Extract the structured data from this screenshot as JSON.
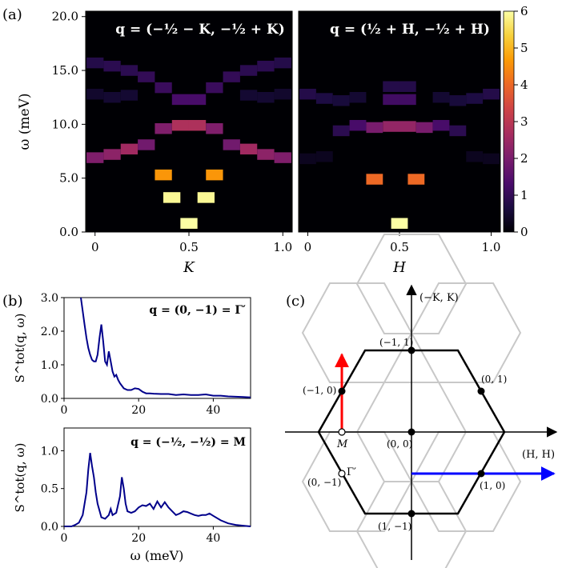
{
  "panel_labels": {
    "a": "(a)",
    "b": "(b)",
    "c": "(c)"
  },
  "chart_data": [
    {
      "id": "a-left",
      "type": "heatmap",
      "title": "q = (−½ − K, −½ + K)",
      "xlabel": "K",
      "ylabel": "ω (meV)",
      "xlim": [
        -0.05,
        1.05
      ],
      "ylim": [
        0,
        20.5
      ],
      "xticks": [
        0,
        0.5,
        1.0
      ],
      "xtick_labels": [
        "0",
        "0.5",
        "1.0"
      ],
      "yticks": [
        0,
        5,
        10,
        15,
        20
      ],
      "ytick_labels": [
        "0.0",
        "5.0",
        "10.0",
        "15.0",
        "20.0"
      ],
      "x_bin_width": 0.0909,
      "y_bin_height": 1.0,
      "cells": [
        {
          "x": 0.0,
          "y": 15.7,
          "v": 0.8
        },
        {
          "x": 0.0,
          "y": 12.8,
          "v": 0.45
        },
        {
          "x": 0.0,
          "y": 6.9,
          "v": 2.1
        },
        {
          "x": 0.091,
          "y": 15.4,
          "v": 0.9
        },
        {
          "x": 0.091,
          "y": 12.5,
          "v": 0.5
        },
        {
          "x": 0.091,
          "y": 7.2,
          "v": 2.3
        },
        {
          "x": 0.182,
          "y": 15.0,
          "v": 0.9
        },
        {
          "x": 0.182,
          "y": 12.7,
          "v": 0.5
        },
        {
          "x": 0.182,
          "y": 7.7,
          "v": 2.6
        },
        {
          "x": 0.273,
          "y": 14.4,
          "v": 1.0
        },
        {
          "x": 0.273,
          "y": 8.1,
          "v": 1.9
        },
        {
          "x": 0.364,
          "y": 13.4,
          "v": 1.1
        },
        {
          "x": 0.364,
          "y": 9.6,
          "v": 2.1
        },
        {
          "x": 0.364,
          "y": 5.3,
          "v": 4.6
        },
        {
          "x": 0.409,
          "y": 3.2,
          "v": 5.9
        },
        {
          "x": 0.455,
          "y": 12.3,
          "v": 1.3
        },
        {
          "x": 0.455,
          "y": 9.9,
          "v": 2.8
        },
        {
          "x": 0.5,
          "y": 0.8,
          "v": 6.0
        },
        {
          "x": 0.545,
          "y": 12.3,
          "v": 1.3
        },
        {
          "x": 0.545,
          "y": 9.9,
          "v": 2.8
        },
        {
          "x": 0.591,
          "y": 3.2,
          "v": 5.9
        },
        {
          "x": 0.636,
          "y": 13.4,
          "v": 1.1
        },
        {
          "x": 0.636,
          "y": 9.6,
          "v": 2.1
        },
        {
          "x": 0.636,
          "y": 5.3,
          "v": 4.6
        },
        {
          "x": 0.727,
          "y": 14.4,
          "v": 1.0
        },
        {
          "x": 0.727,
          "y": 8.1,
          "v": 1.9
        },
        {
          "x": 0.818,
          "y": 15.0,
          "v": 0.9
        },
        {
          "x": 0.818,
          "y": 12.7,
          "v": 0.5
        },
        {
          "x": 0.818,
          "y": 7.7,
          "v": 2.6
        },
        {
          "x": 0.909,
          "y": 15.4,
          "v": 0.9
        },
        {
          "x": 0.909,
          "y": 12.5,
          "v": 0.5
        },
        {
          "x": 0.909,
          "y": 7.2,
          "v": 2.3
        },
        {
          "x": 1.0,
          "y": 15.7,
          "v": 0.8
        },
        {
          "x": 1.0,
          "y": 12.8,
          "v": 0.45
        },
        {
          "x": 1.0,
          "y": 6.9,
          "v": 2.1
        }
      ]
    },
    {
      "id": "a-right",
      "type": "heatmap",
      "title": "q = (½ + H, −½ + H)",
      "xlabel": "H",
      "ylabel": "",
      "xlim": [
        -0.05,
        1.05
      ],
      "ylim": [
        0,
        20.5
      ],
      "xticks": [
        0,
        0.5,
        1.0
      ],
      "xtick_labels": [
        "0",
        "0.5",
        "1.0"
      ],
      "x_bin_width": 0.0909,
      "y_bin_height": 1.0,
      "cells": [
        {
          "x": 0.0,
          "y": 12.8,
          "v": 0.8
        },
        {
          "x": 0.0,
          "y": 6.8,
          "v": 0.3
        },
        {
          "x": 0.091,
          "y": 12.4,
          "v": 0.7
        },
        {
          "x": 0.091,
          "y": 7.0,
          "v": 0.3
        },
        {
          "x": 0.182,
          "y": 12.2,
          "v": 0.6
        },
        {
          "x": 0.182,
          "y": 9.4,
          "v": 0.9
        },
        {
          "x": 0.273,
          "y": 12.5,
          "v": 0.5
        },
        {
          "x": 0.273,
          "y": 9.9,
          "v": 1.3
        },
        {
          "x": 0.364,
          "y": 9.7,
          "v": 2.0
        },
        {
          "x": 0.364,
          "y": 4.9,
          "v": 4.0
        },
        {
          "x": 0.455,
          "y": 12.3,
          "v": 1.2
        },
        {
          "x": 0.455,
          "y": 9.8,
          "v": 2.4
        },
        {
          "x": 0.455,
          "y": 13.5,
          "v": 0.8
        },
        {
          "x": 0.5,
          "y": 0.8,
          "v": 6.0
        },
        {
          "x": 0.545,
          "y": 12.3,
          "v": 1.2
        },
        {
          "x": 0.545,
          "y": 9.8,
          "v": 2.4
        },
        {
          "x": 0.545,
          "y": 13.5,
          "v": 0.8
        },
        {
          "x": 0.591,
          "y": 4.9,
          "v": 4.0
        },
        {
          "x": 0.636,
          "y": 9.7,
          "v": 2.0
        },
        {
          "x": 0.727,
          "y": 12.5,
          "v": 0.5
        },
        {
          "x": 0.727,
          "y": 9.9,
          "v": 1.3
        },
        {
          "x": 0.818,
          "y": 12.2,
          "v": 0.6
        },
        {
          "x": 0.818,
          "y": 9.4,
          "v": 0.9
        },
        {
          "x": 0.909,
          "y": 12.4,
          "v": 0.7
        },
        {
          "x": 0.909,
          "y": 7.0,
          "v": 0.3
        },
        {
          "x": 1.0,
          "y": 12.8,
          "v": 0.8
        },
        {
          "x": 1.0,
          "y": 6.8,
          "v": 0.3
        }
      ]
    },
    {
      "id": "colorbar",
      "type": "colorbar",
      "colormap": "inferno",
      "range": [
        0,
        6
      ],
      "ticks": [
        0,
        1,
        2,
        3,
        4,
        5,
        6
      ],
      "tick_labels": [
        "0",
        "1",
        "2",
        "3",
        "4",
        "5",
        "6"
      ],
      "colors": [
        "#000004",
        "#1b0c41",
        "#4a0c6b",
        "#781c6d",
        "#a52c60",
        "#cf4446",
        "#ed6925",
        "#fb9b06",
        "#f7d13d",
        "#fcffa4"
      ]
    },
    {
      "id": "b-top",
      "type": "line",
      "annotation": "q = (0, −1) = Γ′",
      "xlabel": "",
      "ylabel": "S^tot(q, ω)",
      "xlim": [
        0,
        50
      ],
      "ylim": [
        0,
        3.0
      ],
      "xticks": [
        0,
        20,
        40
      ],
      "xtick_labels": [
        "0",
        "20",
        "40"
      ],
      "yticks": [
        0,
        1,
        2,
        3
      ],
      "ytick_labels": [
        "0.0",
        "1.0",
        "2.0",
        "3.0"
      ],
      "color": "#00008b",
      "x": [
        4.5,
        5.0,
        5.5,
        6.0,
        6.5,
        7.0,
        7.5,
        8.0,
        8.5,
        9.0,
        9.5,
        10.0,
        10.5,
        11.0,
        11.5,
        12.0,
        12.5,
        13.0,
        13.5,
        14.0,
        14.5,
        15.0,
        16.0,
        17.0,
        18.0,
        19.0,
        20.0,
        21.0,
        22.0,
        23.0,
        24.0,
        26.0,
        28.0,
        30.0,
        32.0,
        34.0,
        36.0,
        38.0,
        40.0,
        42.0,
        44.0,
        46.0,
        48.0,
        50.0
      ],
      "y": [
        3.0,
        2.6,
        2.2,
        1.8,
        1.5,
        1.3,
        1.15,
        1.1,
        1.1,
        1.3,
        1.8,
        2.2,
        1.7,
        1.1,
        1.0,
        1.4,
        1.1,
        0.8,
        0.65,
        0.7,
        0.55,
        0.45,
        0.3,
        0.25,
        0.25,
        0.3,
        0.28,
        0.2,
        0.15,
        0.15,
        0.14,
        0.13,
        0.13,
        0.1,
        0.12,
        0.1,
        0.1,
        0.12,
        0.08,
        0.08,
        0.06,
        0.05,
        0.04,
        0.03
      ]
    },
    {
      "id": "b-bottom",
      "type": "line",
      "annotation": "q = (−½, −½) = M",
      "xlabel": "ω (meV)",
      "ylabel": "S^tot(q, ω)",
      "xlim": [
        0,
        50
      ],
      "ylim": [
        0,
        1.3
      ],
      "xticks": [
        0,
        20,
        40
      ],
      "xtick_labels": [
        "0",
        "20",
        "40"
      ],
      "yticks": [
        0,
        0.5,
        1.0
      ],
      "ytick_labels": [
        "0.0",
        "0.5",
        "1.0"
      ],
      "color": "#00008b",
      "x": [
        0,
        2,
        3,
        4,
        5,
        6,
        6.5,
        7.0,
        7.5,
        8.0,
        8.5,
        9.0,
        10.0,
        11.0,
        12.0,
        12.5,
        13.0,
        14.0,
        15.0,
        15.5,
        16.0,
        16.5,
        17.0,
        18.0,
        19.0,
        20.0,
        21.0,
        22.0,
        23.0,
        24.0,
        25.0,
        26.0,
        27.0,
        28.0,
        29.0,
        30.0,
        31.0,
        32.0,
        33.0,
        34.0,
        35.0,
        36.0,
        37.0,
        38.0,
        39.0,
        40.0,
        42.0,
        44.0,
        46.0,
        48.0,
        50.0
      ],
      "y": [
        0.0,
        0.0,
        0.02,
        0.05,
        0.15,
        0.45,
        0.75,
        0.97,
        0.8,
        0.65,
        0.45,
        0.3,
        0.12,
        0.1,
        0.15,
        0.23,
        0.15,
        0.18,
        0.4,
        0.65,
        0.5,
        0.3,
        0.2,
        0.18,
        0.2,
        0.25,
        0.28,
        0.27,
        0.3,
        0.23,
        0.33,
        0.25,
        0.32,
        0.25,
        0.2,
        0.15,
        0.17,
        0.2,
        0.19,
        0.17,
        0.15,
        0.14,
        0.15,
        0.15,
        0.17,
        0.14,
        0.08,
        0.04,
        0.02,
        0.01,
        0.0
      ]
    }
  ],
  "panel_c": {
    "x_axis_label": "(H, H)",
    "y_axis_label": "(−K, K)",
    "points": [
      {
        "label": "(−1, 1)",
        "filled": true
      },
      {
        "label": "(−1, 0)",
        "filled": true
      },
      {
        "label": "(0, 1)",
        "filled": true
      },
      {
        "label": "(0, 0)",
        "filled": true
      },
      {
        "label": "(1, 0)",
        "filled": true
      },
      {
        "label": "(1, −1)",
        "filled": true
      },
      {
        "label": "M",
        "filled": false
      },
      {
        "label": "(0, −1)",
        "filled": false
      },
      {
        "label": "Γ′",
        "filled": false
      }
    ],
    "arrow_colors": {
      "red": "#ff0000",
      "blue": "#0000ff"
    },
    "hex_colors": {
      "outline": "#000000",
      "grid": "#c8c8c8"
    }
  }
}
